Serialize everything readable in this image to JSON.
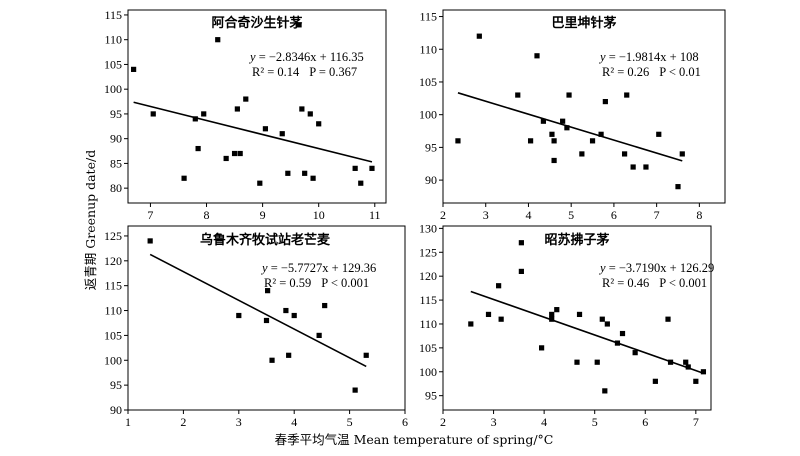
{
  "xlabel": "春季平均气温 Mean temperature of spring/°C",
  "ylabel": "返青期 Greenup date/d",
  "chart_data": [
    {
      "type": "scatter",
      "title": "阿合奇沙生针茅",
      "equation": {
        "y": "y",
        "rhs": " = −2.8346x + 116.35",
        "r2": "R² = 0.14",
        "p": "P = 0.367"
      },
      "fit": {
        "slope": -2.8346,
        "intercept": 116.35
      },
      "xlim": [
        6.6,
        11.2
      ],
      "ylim": [
        77,
        116
      ],
      "xticks": [
        7,
        8,
        9,
        10,
        11
      ],
      "yticks": [
        80,
        85,
        90,
        95,
        100,
        105,
        110,
        115
      ],
      "points": [
        [
          6.7,
          104
        ],
        [
          7.05,
          95
        ],
        [
          7.6,
          82
        ],
        [
          7.8,
          94
        ],
        [
          7.85,
          88
        ],
        [
          7.95,
          95
        ],
        [
          8.2,
          110
        ],
        [
          8.35,
          86
        ],
        [
          8.5,
          87
        ],
        [
          8.55,
          96
        ],
        [
          8.6,
          87
        ],
        [
          8.7,
          98
        ],
        [
          8.95,
          81
        ],
        [
          9.05,
          92
        ],
        [
          9.35,
          91
        ],
        [
          9.45,
          83
        ],
        [
          9.65,
          113
        ],
        [
          9.7,
          96
        ],
        [
          9.75,
          83
        ],
        [
          9.85,
          95
        ],
        [
          9.9,
          82
        ],
        [
          10.0,
          93
        ],
        [
          10.65,
          84
        ],
        [
          10.75,
          81
        ],
        [
          10.95,
          84
        ]
      ]
    },
    {
      "type": "scatter",
      "title": "巴里坤针茅",
      "equation": {
        "y": "y",
        "rhs": " = −1.9814x + 108",
        "r2": "R² = 0.26",
        "p": "P < 0.01"
      },
      "fit": {
        "slope": -1.9814,
        "intercept": 108
      },
      "xlim": [
        2,
        8.6
      ],
      "ylim": [
        86.5,
        116
      ],
      "xticks": [
        2,
        3,
        4,
        5,
        6,
        7,
        8
      ],
      "yticks": [
        90,
        95,
        100,
        105,
        110,
        115
      ],
      "points": [
        [
          2.35,
          96
        ],
        [
          2.85,
          112
        ],
        [
          3.75,
          103
        ],
        [
          4.05,
          96
        ],
        [
          4.2,
          109
        ],
        [
          4.35,
          99
        ],
        [
          4.55,
          97
        ],
        [
          4.6,
          96
        ],
        [
          4.6,
          93
        ],
        [
          4.8,
          99
        ],
        [
          4.9,
          98
        ],
        [
          4.95,
          103
        ],
        [
          5.25,
          94
        ],
        [
          5.5,
          96
        ],
        [
          5.7,
          97
        ],
        [
          5.8,
          102
        ],
        [
          6.25,
          94
        ],
        [
          6.3,
          103
        ],
        [
          6.45,
          92
        ],
        [
          6.75,
          92
        ],
        [
          7.05,
          97
        ],
        [
          7.5,
          89
        ],
        [
          7.6,
          94
        ]
      ]
    },
    {
      "type": "scatter",
      "title": "乌鲁木齐牧试站老芒麦",
      "equation": {
        "y": "y",
        "rhs": " = −5.7727x + 129.36",
        "r2": "R² = 0.59",
        "p": "P < 0.001"
      },
      "fit": {
        "slope": -5.7727,
        "intercept": 129.36
      },
      "xlim": [
        1,
        6
      ],
      "ylim": [
        90,
        127
      ],
      "xticks": [
        1,
        2,
        3,
        4,
        5,
        6
      ],
      "yticks": [
        90,
        95,
        100,
        105,
        110,
        115,
        120,
        125
      ],
      "points": [
        [
          1.4,
          124
        ],
        [
          3.0,
          109
        ],
        [
          3.5,
          108
        ],
        [
          3.52,
          114
        ],
        [
          3.6,
          100
        ],
        [
          3.85,
          110
        ],
        [
          3.9,
          101
        ],
        [
          4.0,
          109
        ],
        [
          4.45,
          105
        ],
        [
          4.55,
          111
        ],
        [
          5.1,
          94
        ],
        [
          5.3,
          101
        ]
      ]
    },
    {
      "type": "scatter",
      "title": "昭苏拂子茅",
      "equation": {
        "y": "y",
        "rhs": " = −3.7190x + 126.29",
        "r2": "R² = 0.46",
        "p": "P < 0.001"
      },
      "fit": {
        "slope": -3.719,
        "intercept": 126.29
      },
      "xlim": [
        2,
        7.3
      ],
      "ylim": [
        92,
        130.5
      ],
      "xticks": [
        2,
        3,
        4,
        5,
        6,
        7
      ],
      "yticks": [
        95,
        100,
        105,
        110,
        115,
        120,
        125,
        130
      ],
      "points": [
        [
          2.55,
          110
        ],
        [
          2.9,
          112
        ],
        [
          3.1,
          118
        ],
        [
          3.15,
          111
        ],
        [
          3.55,
          127
        ],
        [
          3.55,
          121
        ],
        [
          3.95,
          105
        ],
        [
          4.15,
          112
        ],
        [
          4.15,
          111
        ],
        [
          4.25,
          113
        ],
        [
          4.65,
          102
        ],
        [
          4.7,
          112
        ],
        [
          5.05,
          102
        ],
        [
          5.15,
          111
        ],
        [
          5.2,
          96
        ],
        [
          5.25,
          110
        ],
        [
          5.45,
          106
        ],
        [
          5.55,
          108
        ],
        [
          5.8,
          104
        ],
        [
          6.2,
          98
        ],
        [
          6.45,
          111
        ],
        [
          6.5,
          102
        ],
        [
          6.8,
          102
        ],
        [
          6.85,
          101
        ],
        [
          7.0,
          98
        ],
        [
          7.15,
          100
        ]
      ]
    }
  ]
}
